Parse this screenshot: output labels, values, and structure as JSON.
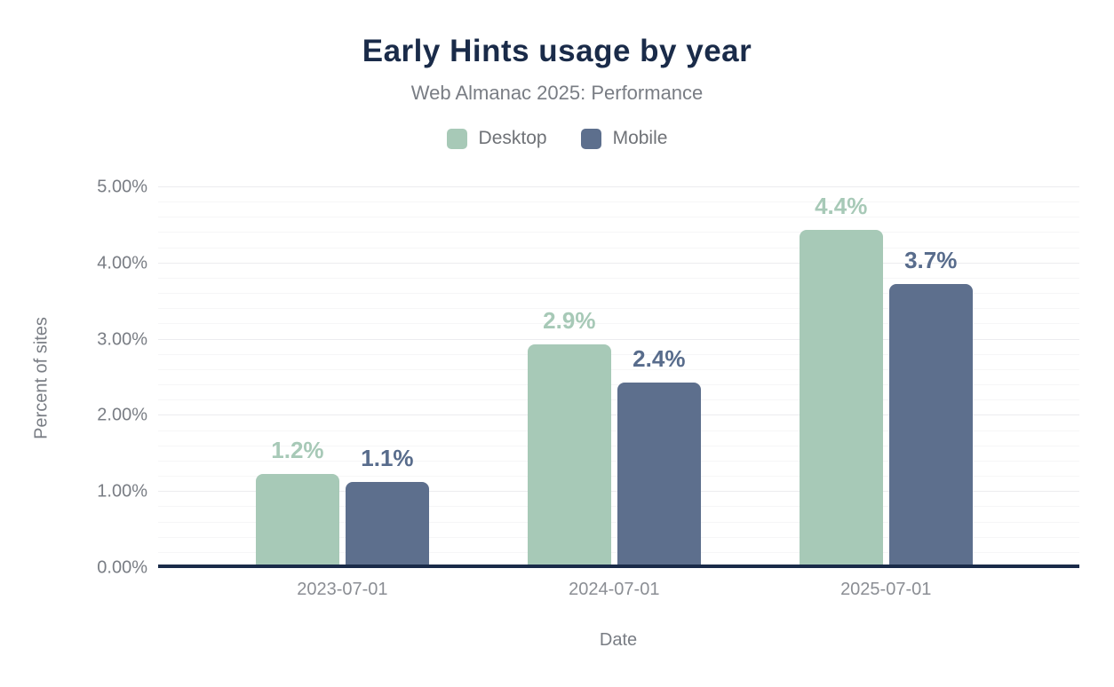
{
  "header": {
    "title": "Early Hints usage by year",
    "subtitle": "Web Almanac 2025: Performance"
  },
  "chart_data": {
    "type": "bar",
    "title": "Early Hints usage by year",
    "subtitle": "Web Almanac 2025: Performance",
    "categories": [
      "2023-07-01",
      "2024-07-01",
      "2025-07-01"
    ],
    "series": [
      {
        "name": "Desktop",
        "color": "#a7c9b7",
        "label_color": "#a7c9b7",
        "values": [
          1.2,
          2.9,
          4.4
        ],
        "labels": [
          "1.2%",
          "2.9%",
          "4.4%"
        ]
      },
      {
        "name": "Mobile",
        "color": "#5d6f8d",
        "label_color": "#586c8c",
        "values": [
          1.1,
          2.4,
          3.7
        ],
        "labels": [
          "1.1%",
          "2.4%",
          "3.7%"
        ]
      }
    ],
    "xlabel": "Date",
    "ylabel": "Percent of sites",
    "ylim": [
      0,
      5
    ],
    "ytick_step": 1,
    "ytick_minor_step": 0.2,
    "ytick_labels": [
      "0.00%",
      "1.00%",
      "2.00%",
      "3.00%",
      "4.00%",
      "5.00%"
    ],
    "legend_position": "top",
    "grid": "horizontal",
    "axis_color": "#1a2b49"
  }
}
